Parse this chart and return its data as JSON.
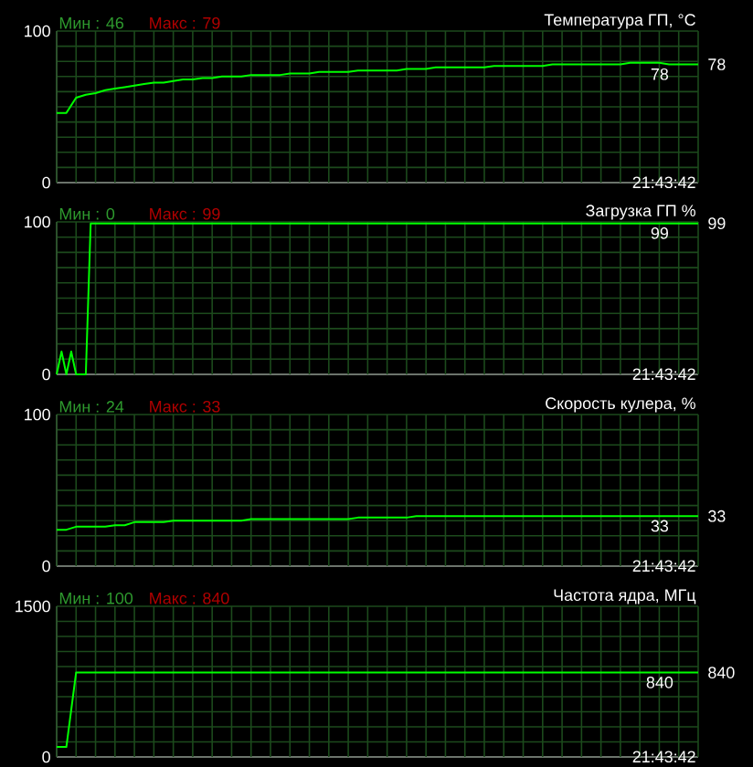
{
  "chart_data": [
    {
      "type": "line",
      "title": "Температура ГП, °C",
      "categories": [
        null,
        null,
        null,
        null,
        null,
        null,
        null,
        null,
        null,
        null,
        null,
        null,
        null,
        null,
        null,
        null,
        null,
        null,
        null,
        null,
        null,
        null,
        null,
        null,
        null,
        null,
        null,
        null,
        null,
        null,
        null,
        null,
        null,
        null,
        null,
        null,
        null,
        null,
        null,
        null,
        null,
        null,
        null,
        null,
        null,
        null,
        null,
        null,
        null,
        null,
        null,
        null,
        null,
        null,
        null,
        null,
        null,
        null,
        null,
        null,
        null,
        null,
        null,
        null,
        null,
        null,
        null
      ],
      "series": [
        {
          "color": "#00ff00",
          "values": [
            46,
            46,
            56,
            58,
            59,
            61,
            62,
            63,
            64,
            65,
            66,
            66,
            67,
            68,
            68,
            69,
            69,
            70,
            70,
            70,
            71,
            71,
            71,
            71,
            72,
            72,
            72,
            73,
            73,
            73,
            73,
            74,
            74,
            74,
            74,
            74,
            75,
            75,
            75,
            76,
            76,
            76,
            76,
            76,
            76,
            77,
            77,
            77,
            77,
            77,
            77,
            78,
            78,
            78,
            78,
            78,
            78,
            78,
            78,
            79,
            79,
            79,
            79,
            78,
            78,
            78,
            78
          ]
        }
      ],
      "ylim": [
        0,
        100
      ],
      "yticks": [
        0,
        {
          "value": 10,
          "label": null
        },
        {
          "value": 20,
          "label": null
        },
        {
          "value": 30,
          "label": null
        },
        {
          "value": 40,
          "label": null
        },
        {
          "value": 50,
          "label": null
        },
        {
          "value": 60,
          "label": null
        },
        {
          "value": 70,
          "label": null
        },
        {
          "value": 80,
          "label": null
        },
        {
          "value": 90,
          "label": null
        },
        100
      ],
      "grid": true,
      "annotations": [
        "Мин : 46",
        "Макс : 79",
        "21:43:42",
        {
          "text": "78",
          "y": 78
        },
        "78"
      ]
    },
    {
      "type": "line",
      "title": "Загрузка ГП %",
      "categories": [
        null,
        null,
        null,
        null,
        null,
        null,
        null,
        null,
        null,
        null,
        null,
        null,
        null,
        null,
        null,
        null,
        null,
        null,
        null,
        null,
        null,
        null,
        null,
        null,
        null,
        null,
        null,
        null,
        null,
        null,
        null,
        null,
        null,
        null,
        null,
        null,
        null,
        null,
        null,
        null,
        null,
        null,
        null,
        null,
        null,
        null,
        null,
        null,
        null,
        null,
        null,
        null,
        null,
        null,
        null,
        null,
        null,
        null,
        null,
        null,
        null,
        null,
        null,
        null,
        null,
        null,
        null,
        null,
        null,
        null,
        null,
        null,
        null,
        null,
        null,
        null,
        null,
        null,
        null,
        null,
        null,
        null,
        null,
        null,
        null,
        null,
        null,
        null,
        null,
        null,
        null,
        null,
        null,
        null,
        null,
        null,
        null,
        null,
        null,
        null,
        null,
        null,
        null,
        null,
        null,
        null,
        null,
        null,
        null,
        null,
        null,
        null,
        null,
        null,
        null,
        null,
        null,
        null,
        null,
        null,
        null,
        null,
        null,
        null,
        null,
        null,
        null,
        null,
        null,
        null,
        null,
        null,
        null
      ],
      "series": [
        {
          "color": "#00ff00",
          "values": [
            0,
            15,
            0,
            15,
            0,
            0,
            0,
            99,
            99,
            99,
            99,
            99,
            99,
            99,
            99,
            99,
            99,
            99,
            99,
            99,
            99,
            99,
            99,
            99,
            99,
            99,
            99,
            99,
            99,
            99,
            99,
            99,
            99,
            99,
            99,
            99,
            99,
            99,
            99,
            99,
            99,
            99,
            99,
            99,
            99,
            99,
            99,
            99,
            99,
            99,
            99,
            99,
            99,
            99,
            99,
            99,
            99,
            99,
            99,
            99,
            99,
            99,
            99,
            99,
            99,
            99,
            99,
            99,
            99,
            99,
            99,
            99,
            99,
            99,
            99,
            99,
            99,
            99,
            99,
            99,
            99,
            99,
            99,
            99,
            99,
            99,
            99,
            99,
            99,
            99,
            99,
            99,
            99,
            99,
            99,
            99,
            99,
            99,
            99,
            99,
            99,
            99,
            99,
            99,
            99,
            99,
            99,
            99,
            99,
            99,
            99,
            99,
            99,
            99,
            99,
            99,
            99,
            99,
            99,
            99,
            99,
            99,
            99,
            99,
            99,
            99,
            99,
            99,
            99,
            99,
            99,
            99,
            99
          ]
        }
      ],
      "ylim": [
        0,
        100
      ],
      "yticks": [
        0,
        {
          "value": 10,
          "label": null
        },
        {
          "value": 20,
          "label": null
        },
        {
          "value": 30,
          "label": null
        },
        {
          "value": 40,
          "label": null
        },
        {
          "value": 50,
          "label": null
        },
        {
          "value": 60,
          "label": null
        },
        {
          "value": 70,
          "label": null
        },
        {
          "value": 80,
          "label": null
        },
        {
          "value": 90,
          "label": null
        },
        100
      ],
      "grid": true,
      "annotations": [
        "Мин : 0",
        "Макс : 99",
        "21:43:42",
        {
          "text": "99",
          "y": 99
        },
        "99"
      ]
    },
    {
      "type": "line",
      "title": "Скорость кулера, %",
      "categories": [
        null,
        null,
        null,
        null,
        null,
        null,
        null,
        null,
        null,
        null,
        null,
        null,
        null,
        null,
        null,
        null,
        null,
        null,
        null,
        null,
        null,
        null,
        null,
        null,
        null,
        null,
        null,
        null,
        null,
        null,
        null,
        null,
        null,
        null,
        null,
        null,
        null,
        null,
        null,
        null,
        null,
        null,
        null,
        null,
        null,
        null,
        null,
        null,
        null,
        null,
        null,
        null,
        null,
        null,
        null,
        null,
        null,
        null,
        null,
        null,
        null,
        null,
        null,
        null,
        null,
        null,
        null
      ],
      "series": [
        {
          "color": "#00ff00",
          "values": [
            24,
            24,
            26,
            26,
            26,
            26,
            27,
            27,
            29,
            29,
            29,
            29,
            30,
            30,
            30,
            30,
            30,
            30,
            30,
            30,
            31,
            31,
            31,
            31,
            31,
            31,
            31,
            31,
            31,
            31,
            31,
            32,
            32,
            32,
            32,
            32,
            32,
            33,
            33,
            33,
            33,
            33,
            33,
            33,
            33,
            33,
            33,
            33,
            33,
            33,
            33,
            33,
            33,
            33,
            33,
            33,
            33,
            33,
            33,
            33,
            33,
            33,
            33,
            33,
            33,
            33,
            33
          ]
        }
      ],
      "ylim": [
        0,
        100
      ],
      "yticks": [
        0,
        {
          "value": 10,
          "label": null
        },
        {
          "value": 20,
          "label": null
        },
        {
          "value": 30,
          "label": null
        },
        {
          "value": 40,
          "label": null
        },
        {
          "value": 50,
          "label": null
        },
        {
          "value": 60,
          "label": null
        },
        {
          "value": 70,
          "label": null
        },
        {
          "value": 80,
          "label": null
        },
        {
          "value": 90,
          "label": null
        },
        100
      ],
      "grid": true,
      "annotations": [
        "Мин : 24",
        "Макс : 33",
        "21:43:42",
        {
          "text": "33",
          "y": 33
        },
        "33"
      ]
    },
    {
      "type": "line",
      "title": "Частота ядра, МГц",
      "categories": [
        null,
        null,
        null,
        null,
        null,
        null,
        null,
        null,
        null,
        null,
        null,
        null,
        null,
        null,
        null,
        null,
        null,
        null,
        null,
        null,
        null,
        null,
        null,
        null,
        null,
        null,
        null,
        null,
        null,
        null,
        null,
        null,
        null,
        null,
        null,
        null,
        null,
        null,
        null,
        null,
        null,
        null,
        null,
        null,
        null,
        null,
        null,
        null,
        null,
        null,
        null,
        null,
        null,
        null,
        null,
        null,
        null,
        null,
        null,
        null,
        null,
        null,
        null,
        null,
        null,
        null,
        null
      ],
      "series": [
        {
          "color": "#00ff00",
          "values": [
            100,
            100,
            840,
            840,
            840,
            840,
            840,
            840,
            840,
            840,
            840,
            840,
            840,
            840,
            840,
            840,
            840,
            840,
            840,
            840,
            840,
            840,
            840,
            840,
            840,
            840,
            840,
            840,
            840,
            840,
            840,
            840,
            840,
            840,
            840,
            840,
            840,
            840,
            840,
            840,
            840,
            840,
            840,
            840,
            840,
            840,
            840,
            840,
            840,
            840,
            840,
            840,
            840,
            840,
            840,
            840,
            840,
            840,
            840,
            840,
            840,
            840,
            840,
            840,
            840,
            840,
            840
          ]
        }
      ],
      "ylim": [
        0,
        1500
      ],
      "yticks": [
        0,
        {
          "value": 150,
          "label": null
        },
        {
          "value": 300,
          "label": null
        },
        {
          "value": 450,
          "label": null
        },
        {
          "value": 600,
          "label": null
        },
        {
          "value": 750,
          "label": null
        },
        {
          "value": 900,
          "label": null
        },
        {
          "value": 1050,
          "label": null
        },
        {
          "value": 1200,
          "label": null
        },
        {
          "value": 1350,
          "label": null
        },
        1500
      ],
      "grid": true,
      "annotations": [
        "Мин : 100",
        "Макс : 840",
        "21:43:42",
        {
          "text": "840",
          "y": 840
        },
        "840"
      ]
    }
  ]
}
